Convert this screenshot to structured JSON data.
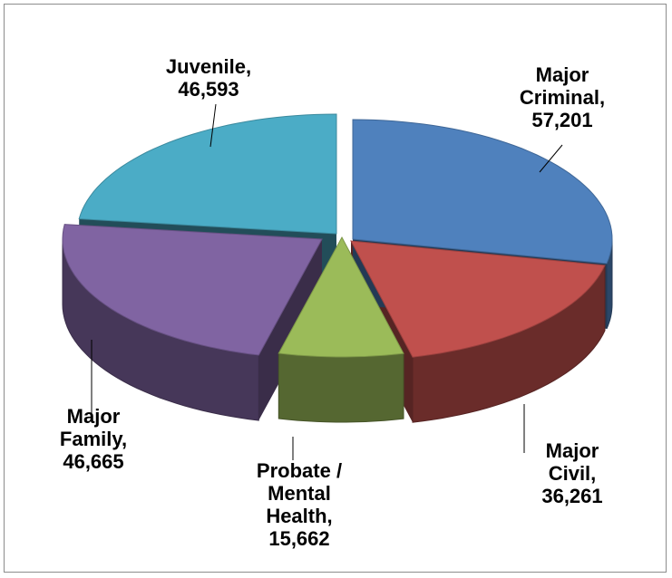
{
  "chart_data": {
    "type": "pie",
    "title": "",
    "style": "3d-exploded",
    "slices": [
      {
        "name": "Major Criminal",
        "value": 57201,
        "color": "#4f81bd",
        "label_lines": [
          "Major",
          "Criminal,",
          "57,201"
        ]
      },
      {
        "name": "Major Civil",
        "value": 36261,
        "color": "#c0504d",
        "label_lines": [
          "Major",
          "Civil,",
          "36,261"
        ]
      },
      {
        "name": "Probate / Mental Health",
        "value": 15662,
        "color": "#9bbb59",
        "label_lines": [
          "Probate /",
          "Mental",
          "Health,",
          "15,662"
        ]
      },
      {
        "name": "Major Family",
        "value": 46665,
        "color": "#8064a2",
        "label_lines": [
          "Major",
          "Family,",
          "46,665"
        ]
      },
      {
        "name": "Juvenile",
        "value": 46593,
        "color": "#4bacc6",
        "label_lines": [
          "Juvenile,",
          "46,593"
        ]
      }
    ]
  }
}
